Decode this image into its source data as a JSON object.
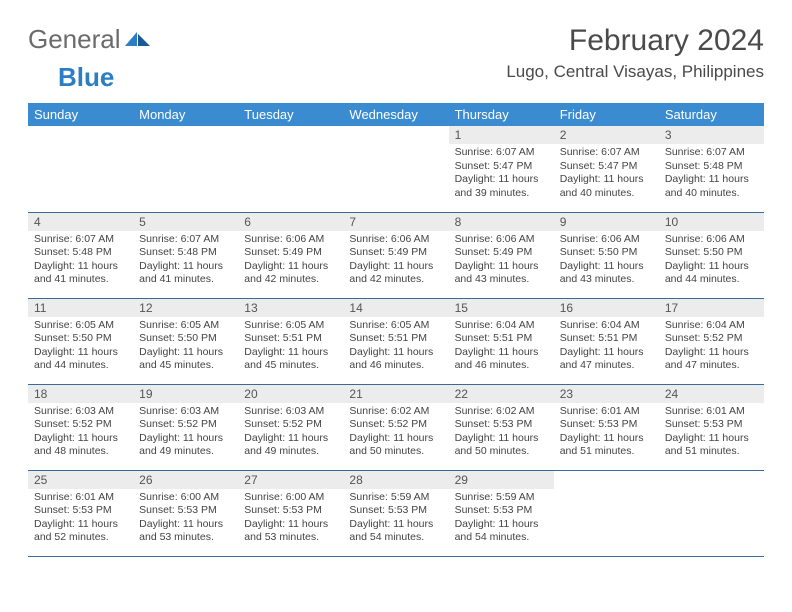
{
  "logo": {
    "general": "General",
    "blue": "Blue"
  },
  "title": "February 2024",
  "location": "Lugo, Central Visayas, Philippines",
  "colors": {
    "header_bg": "#3a8bd0",
    "header_text": "#ffffff",
    "daynum_bg": "#ececec",
    "border": "#3a6a9a",
    "logo_gray": "#6b6b6b",
    "logo_blue": "#2b7dc4"
  },
  "weekdays": [
    "Sunday",
    "Monday",
    "Tuesday",
    "Wednesday",
    "Thursday",
    "Friday",
    "Saturday"
  ],
  "weeks": [
    [
      null,
      null,
      null,
      null,
      {
        "n": "1",
        "sr": "6:07 AM",
        "ss": "5:47 PM",
        "dl": "11 hours and 39 minutes."
      },
      {
        "n": "2",
        "sr": "6:07 AM",
        "ss": "5:47 PM",
        "dl": "11 hours and 40 minutes."
      },
      {
        "n": "3",
        "sr": "6:07 AM",
        "ss": "5:48 PM",
        "dl": "11 hours and 40 minutes."
      }
    ],
    [
      {
        "n": "4",
        "sr": "6:07 AM",
        "ss": "5:48 PM",
        "dl": "11 hours and 41 minutes."
      },
      {
        "n": "5",
        "sr": "6:07 AM",
        "ss": "5:48 PM",
        "dl": "11 hours and 41 minutes."
      },
      {
        "n": "6",
        "sr": "6:06 AM",
        "ss": "5:49 PM",
        "dl": "11 hours and 42 minutes."
      },
      {
        "n": "7",
        "sr": "6:06 AM",
        "ss": "5:49 PM",
        "dl": "11 hours and 42 minutes."
      },
      {
        "n": "8",
        "sr": "6:06 AM",
        "ss": "5:49 PM",
        "dl": "11 hours and 43 minutes."
      },
      {
        "n": "9",
        "sr": "6:06 AM",
        "ss": "5:50 PM",
        "dl": "11 hours and 43 minutes."
      },
      {
        "n": "10",
        "sr": "6:06 AM",
        "ss": "5:50 PM",
        "dl": "11 hours and 44 minutes."
      }
    ],
    [
      {
        "n": "11",
        "sr": "6:05 AM",
        "ss": "5:50 PM",
        "dl": "11 hours and 44 minutes."
      },
      {
        "n": "12",
        "sr": "6:05 AM",
        "ss": "5:50 PM",
        "dl": "11 hours and 45 minutes."
      },
      {
        "n": "13",
        "sr": "6:05 AM",
        "ss": "5:51 PM",
        "dl": "11 hours and 45 minutes."
      },
      {
        "n": "14",
        "sr": "6:05 AM",
        "ss": "5:51 PM",
        "dl": "11 hours and 46 minutes."
      },
      {
        "n": "15",
        "sr": "6:04 AM",
        "ss": "5:51 PM",
        "dl": "11 hours and 46 minutes."
      },
      {
        "n": "16",
        "sr": "6:04 AM",
        "ss": "5:51 PM",
        "dl": "11 hours and 47 minutes."
      },
      {
        "n": "17",
        "sr": "6:04 AM",
        "ss": "5:52 PM",
        "dl": "11 hours and 47 minutes."
      }
    ],
    [
      {
        "n": "18",
        "sr": "6:03 AM",
        "ss": "5:52 PM",
        "dl": "11 hours and 48 minutes."
      },
      {
        "n": "19",
        "sr": "6:03 AM",
        "ss": "5:52 PM",
        "dl": "11 hours and 49 minutes."
      },
      {
        "n": "20",
        "sr": "6:03 AM",
        "ss": "5:52 PM",
        "dl": "11 hours and 49 minutes."
      },
      {
        "n": "21",
        "sr": "6:02 AM",
        "ss": "5:52 PM",
        "dl": "11 hours and 50 minutes."
      },
      {
        "n": "22",
        "sr": "6:02 AM",
        "ss": "5:53 PM",
        "dl": "11 hours and 50 minutes."
      },
      {
        "n": "23",
        "sr": "6:01 AM",
        "ss": "5:53 PM",
        "dl": "11 hours and 51 minutes."
      },
      {
        "n": "24",
        "sr": "6:01 AM",
        "ss": "5:53 PM",
        "dl": "11 hours and 51 minutes."
      }
    ],
    [
      {
        "n": "25",
        "sr": "6:01 AM",
        "ss": "5:53 PM",
        "dl": "11 hours and 52 minutes."
      },
      {
        "n": "26",
        "sr": "6:00 AM",
        "ss": "5:53 PM",
        "dl": "11 hours and 53 minutes."
      },
      {
        "n": "27",
        "sr": "6:00 AM",
        "ss": "5:53 PM",
        "dl": "11 hours and 53 minutes."
      },
      {
        "n": "28",
        "sr": "5:59 AM",
        "ss": "5:53 PM",
        "dl": "11 hours and 54 minutes."
      },
      {
        "n": "29",
        "sr": "5:59 AM",
        "ss": "5:53 PM",
        "dl": "11 hours and 54 minutes."
      },
      null,
      null
    ]
  ],
  "labels": {
    "sunrise": "Sunrise: ",
    "sunset": "Sunset: ",
    "daylight": "Daylight: "
  }
}
